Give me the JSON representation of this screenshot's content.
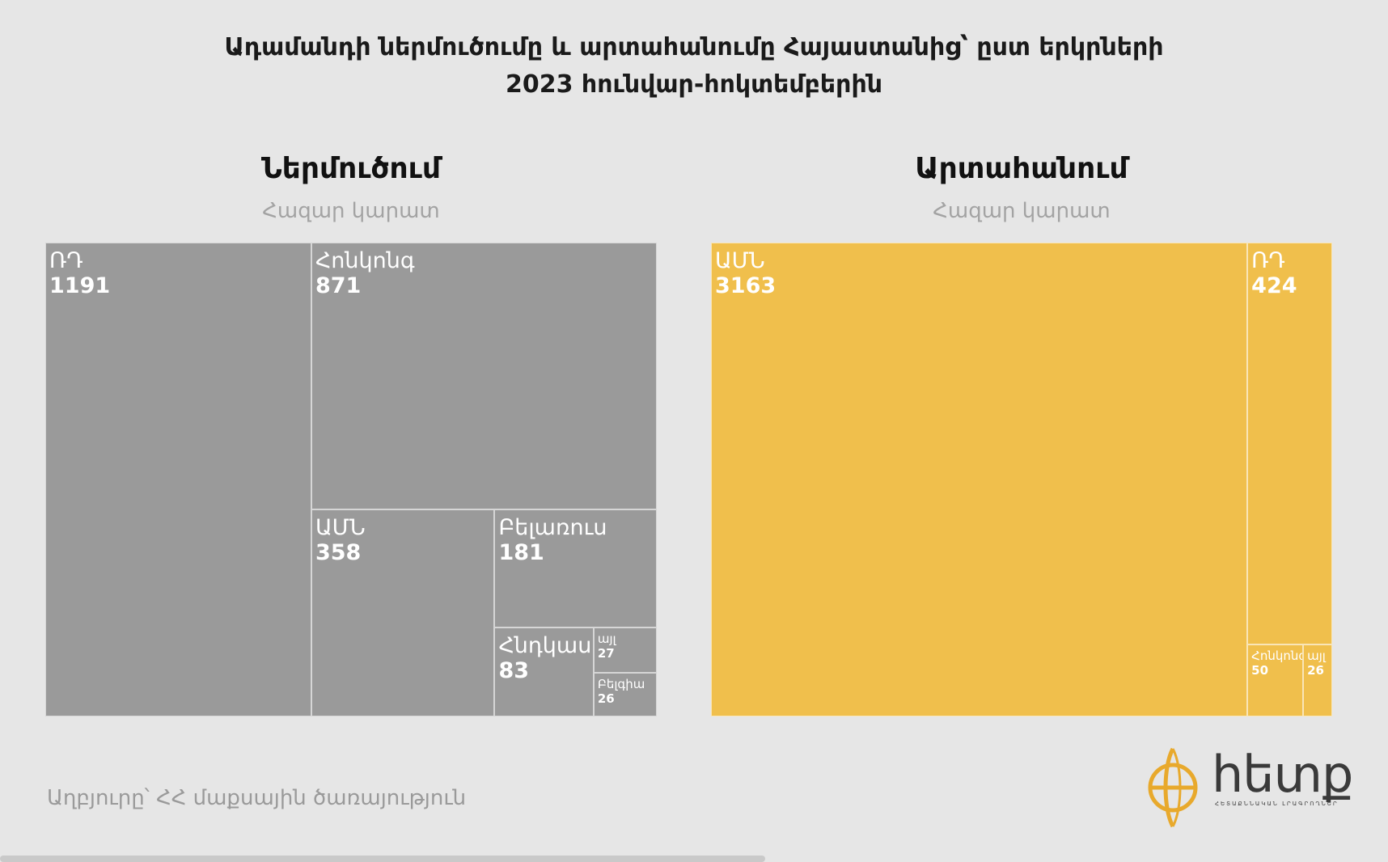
{
  "title": {
    "line1": "Ադամանդի ներմուծումը և արտահանումը Հայաստանից՝ ըստ երկրների",
    "line2": "2023 հունվար-հոկտեմբերին"
  },
  "chart_data": [
    {
      "type": "treemap",
      "title": "Ներմուծում",
      "unit": "Հազար կարատ",
      "color": "#9a9a9a",
      "items": [
        {
          "label": "ՌԴ",
          "value": 1191
        },
        {
          "label": "Հոնկոնգ",
          "value": 871
        },
        {
          "label": "ԱՄՆ",
          "value": 358
        },
        {
          "label": "Բելառուս",
          "value": 181
        },
        {
          "label": "Հնդկաստան",
          "value": 83
        },
        {
          "label": "այլ",
          "value": 27
        },
        {
          "label": "Բելգիա",
          "value": 26
        }
      ]
    },
    {
      "type": "treemap",
      "title": "Արտահանում",
      "unit": "Հազար կարատ",
      "color": "#f0bf4c",
      "items": [
        {
          "label": "ԱՄՆ",
          "value": 3163
        },
        {
          "label": "ՌԴ",
          "value": 424
        },
        {
          "label": "Հոնկոնգ",
          "value": 50
        },
        {
          "label": "այլ",
          "value": 26
        }
      ]
    }
  ],
  "source": "Աղբյուրը՝ ՀՀ մաքսային ծառայություն",
  "logo": {
    "text": "հետք",
    "icon": "globe-logo-icon",
    "tagline": "ՀԵՏԱՔՆՆԱԿԱՆ ԼՐԱԳՐՈՂՆԵՐ"
  }
}
